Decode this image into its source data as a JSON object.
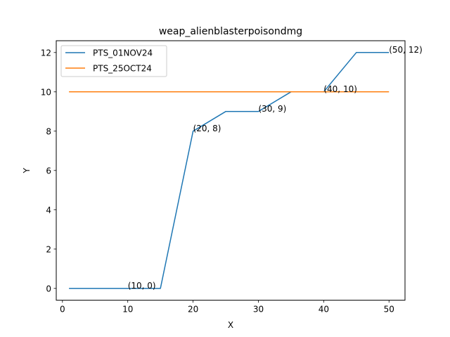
{
  "chart_data": {
    "type": "line",
    "title": "weap_alienblasterpoisondmg",
    "xlabel": "X",
    "ylabel": "Y",
    "xlim": [
      -0.95,
      52.45
    ],
    "ylim": [
      -0.6,
      12.6
    ],
    "xticks": [
      0,
      10,
      20,
      30,
      40,
      50
    ],
    "yticks": [
      0,
      2,
      4,
      6,
      8,
      10,
      12
    ],
    "grid": false,
    "legend": "top-left",
    "series": [
      {
        "name": "PTS_01NOV24",
        "color": "#1f77b4",
        "x": [
          1,
          10,
          15,
          20,
          25,
          30,
          35,
          40,
          45,
          50
        ],
        "y": [
          0,
          0,
          0,
          8,
          9,
          9,
          10,
          10,
          12,
          12
        ]
      },
      {
        "name": "PTS_25OCT24",
        "color": "#ff7f0e",
        "x": [
          1,
          50
        ],
        "y": [
          10,
          10
        ]
      }
    ],
    "annotations": [
      {
        "x": 10,
        "y": 0,
        "text": "(10, 0)"
      },
      {
        "x": 20,
        "y": 8,
        "text": "(20, 8)"
      },
      {
        "x": 30,
        "y": 9,
        "text": "(30, 9)"
      },
      {
        "x": 40,
        "y": 10,
        "text": "(40, 10)"
      },
      {
        "x": 50,
        "y": 12,
        "text": "(50, 12)"
      }
    ]
  }
}
